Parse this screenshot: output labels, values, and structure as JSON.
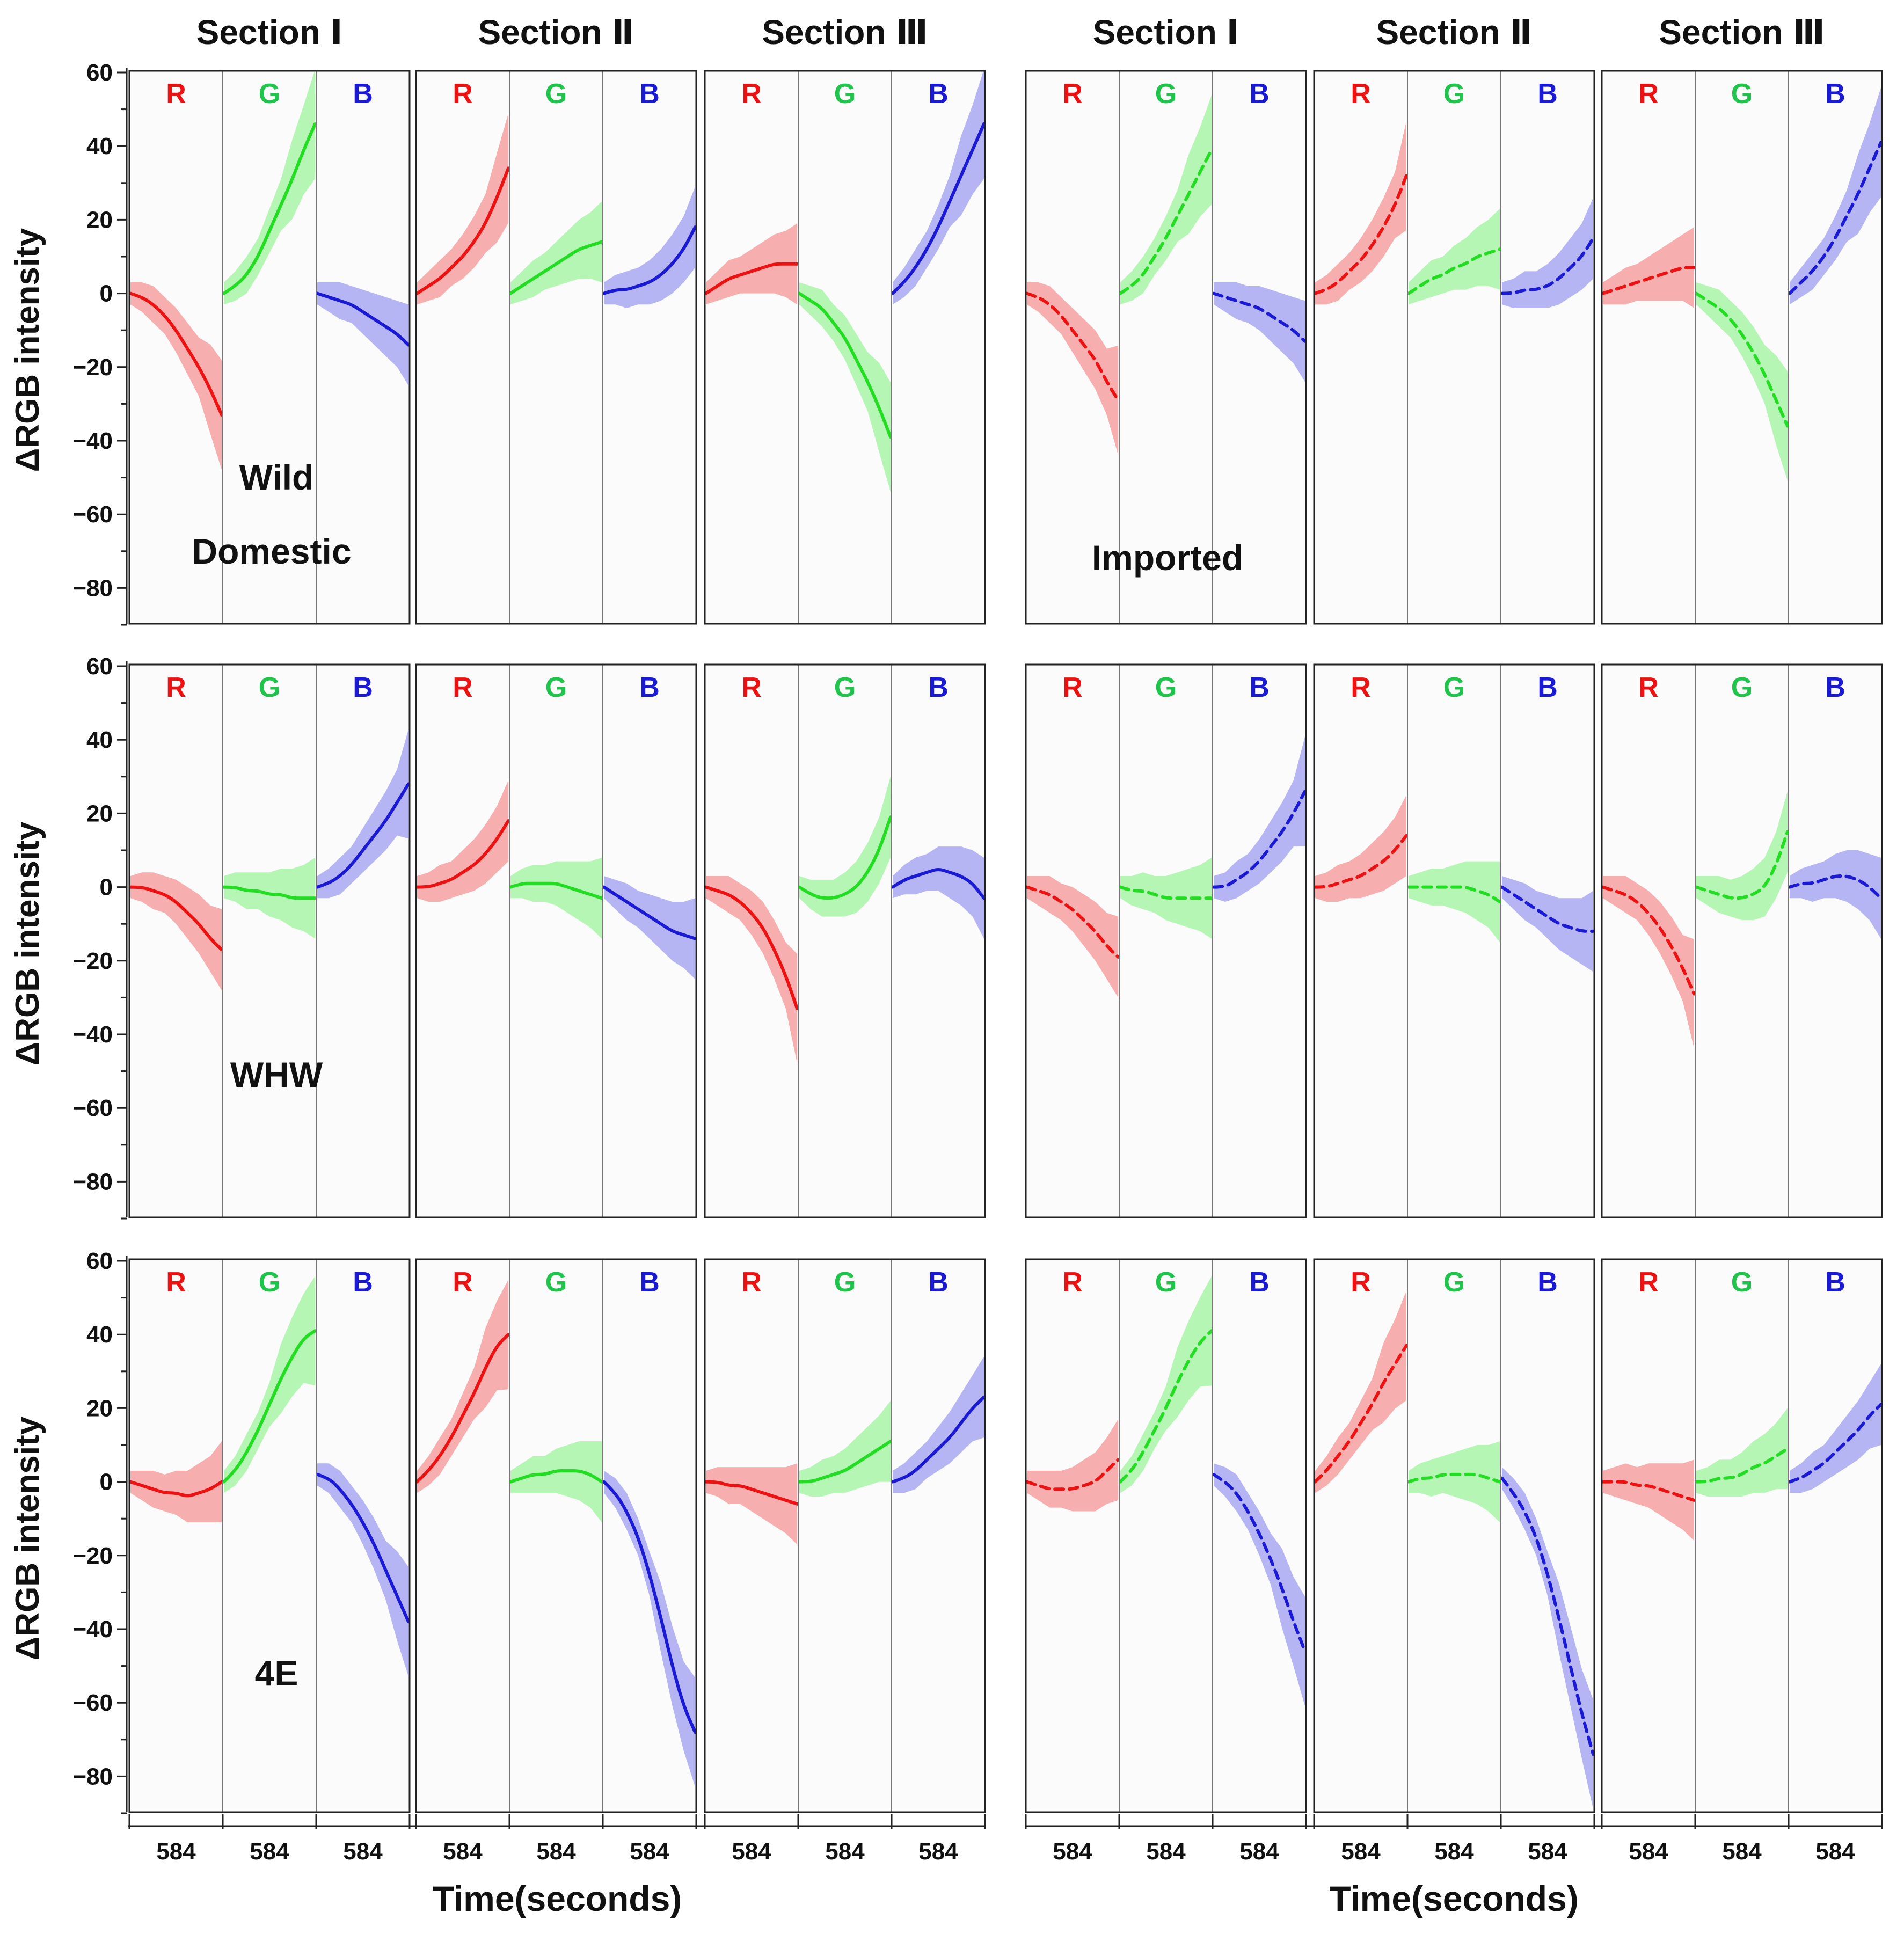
{
  "chart_data": {
    "type": "line",
    "ylabel": "ΔRGB intensity",
    "xlabel": "Time(seconds)",
    "ylim": [
      -90,
      60
    ],
    "yticks": [
      60,
      40,
      20,
      0,
      -20,
      -40,
      -60,
      -80
    ],
    "x_tick_label": "584",
    "channels": [
      "R",
      "G",
      "B"
    ],
    "channel_colors": {
      "R": "#ee1111",
      "G": "#22dd22",
      "B": "#1a1ad6"
    },
    "band_colors": {
      "R": "#f5a0a0",
      "G": "#a8f5a8",
      "B": "#a8a8f2"
    },
    "groups": [
      {
        "name": "Domestic",
        "line_style": "solid",
        "sections": [
          "Section Ⅰ",
          "Section Ⅱ",
          "Section Ⅲ"
        ]
      },
      {
        "name": "Imported",
        "line_style": "dashed",
        "sections": [
          "Section Ⅰ",
          "Section Ⅱ",
          "Section Ⅲ"
        ]
      }
    ],
    "rows": [
      {
        "label": "Wild",
        "domestic": [
          {
            "R": [
              0,
              -1,
              -3,
              -6,
              -10,
              -15,
              -20,
              -26,
              -33
            ],
            "G": [
              0,
              2,
              5,
              10,
              17,
              24,
              31,
              39,
              46
            ],
            "B": [
              0,
              -1,
              -2,
              -3,
              -5,
              -7,
              -9,
              -11,
              -14
            ]
          },
          {
            "R": [
              0,
              2,
              4,
              7,
              10,
              14,
              19,
              26,
              34
            ],
            "G": [
              0,
              2,
              4,
              6,
              8,
              10,
              12,
              13,
              14
            ],
            "B": [
              0,
              1,
              1,
              2,
              3,
              5,
              8,
              12,
              18
            ]
          },
          {
            "R": [
              0,
              2,
              4,
              5,
              6,
              7,
              8,
              8,
              8
            ],
            "G": [
              0,
              -2,
              -4,
              -8,
              -12,
              -18,
              -24,
              -31,
              -39
            ],
            "B": [
              0,
              3,
              7,
              12,
              18,
              25,
              32,
              39,
              46
            ]
          }
        ],
        "imported": [
          {
            "R": [
              0,
              -1,
              -3,
              -6,
              -10,
              -14,
              -18,
              -24,
              -29
            ],
            "G": [
              0,
              2,
              5,
              10,
              15,
              21,
              27,
              33,
              39
            ],
            "B": [
              0,
              -1,
              -2,
              -3,
              -4,
              -6,
              -8,
              -10,
              -13
            ]
          },
          {
            "R": [
              0,
              1,
              3,
              6,
              9,
              13,
              18,
              24,
              32
            ],
            "G": [
              0,
              2,
              4,
              5,
              7,
              8,
              10,
              11,
              12
            ],
            "B": [
              0,
              0,
              1,
              1,
              2,
              4,
              7,
              10,
              15
            ]
          },
          {
            "R": [
              0,
              1,
              2,
              3,
              4,
              5,
              6,
              7,
              7
            ],
            "G": [
              0,
              -2,
              -4,
              -7,
              -11,
              -16,
              -22,
              -29,
              -36
            ],
            "B": [
              0,
              3,
              6,
              10,
              15,
              21,
              27,
              34,
              41
            ]
          }
        ]
      },
      {
        "label": "WHW",
        "domestic": [
          {
            "R": [
              0,
              0,
              -1,
              -2,
              -4,
              -7,
              -10,
              -14,
              -17
            ],
            "G": [
              0,
              0,
              -1,
              -1,
              -2,
              -2,
              -3,
              -3,
              -3
            ],
            "B": [
              0,
              1,
              3,
              6,
              10,
              14,
              18,
              23,
              28
            ]
          },
          {
            "R": [
              0,
              0,
              1,
              2,
              4,
              6,
              9,
              13,
              18
            ],
            "G": [
              0,
              1,
              1,
              1,
              1,
              0,
              -1,
              -2,
              -3
            ],
            "B": [
              0,
              -2,
              -4,
              -6,
              -8,
              -10,
              -12,
              -13,
              -14
            ]
          },
          {
            "R": [
              0,
              -1,
              -2,
              -4,
              -7,
              -11,
              -17,
              -24,
              -33
            ],
            "G": [
              0,
              -2,
              -3,
              -3,
              -2,
              0,
              4,
              10,
              19
            ],
            "B": [
              0,
              2,
              3,
              4,
              5,
              4,
              3,
              1,
              -3
            ]
          }
        ],
        "imported": [
          {
            "R": [
              0,
              -1,
              -2,
              -4,
              -6,
              -9,
              -12,
              -16,
              -19
            ],
            "G": [
              0,
              -1,
              -1,
              -2,
              -3,
              -3,
              -3,
              -3,
              -3
            ],
            "B": [
              0,
              0,
              2,
              4,
              7,
              11,
              15,
              20,
              26
            ]
          },
          {
            "R": [
              0,
              0,
              1,
              2,
              3,
              5,
              7,
              10,
              14
            ],
            "G": [
              0,
              0,
              0,
              0,
              0,
              0,
              -1,
              -2,
              -4
            ],
            "B": [
              0,
              -2,
              -4,
              -6,
              -8,
              -10,
              -11,
              -12,
              -12
            ]
          },
          {
            "R": [
              0,
              -1,
              -2,
              -4,
              -7,
              -11,
              -16,
              -22,
              -29
            ],
            "G": [
              0,
              -1,
              -2,
              -3,
              -3,
              -2,
              0,
              6,
              15
            ],
            "B": [
              0,
              1,
              1,
              2,
              3,
              3,
              2,
              0,
              -3
            ]
          }
        ]
      },
      {
        "label": "4E",
        "domestic": [
          {
            "R": [
              0,
              -1,
              -2,
              -3,
              -3,
              -4,
              -3,
              -2,
              0
            ],
            "G": [
              0,
              3,
              8,
              14,
              21,
              28,
              34,
              39,
              41
            ],
            "B": [
              2,
              1,
              -2,
              -6,
              -11,
              -17,
              -24,
              -31,
              -38
            ]
          },
          {
            "R": [
              0,
              3,
              7,
              12,
              18,
              24,
              31,
              37,
              40
            ],
            "G": [
              0,
              1,
              2,
              2,
              3,
              3,
              3,
              2,
              0
            ],
            "B": [
              0,
              -3,
              -8,
              -15,
              -25,
              -37,
              -50,
              -61,
              -68
            ]
          },
          {
            "R": [
              0,
              0,
              -1,
              -1,
              -2,
              -3,
              -4,
              -5,
              -6
            ],
            "G": [
              0,
              0,
              1,
              2,
              3,
              5,
              7,
              9,
              11
            ],
            "B": [
              0,
              1,
              3,
              6,
              9,
              12,
              16,
              20,
              23
            ]
          }
        ],
        "imported": [
          {
            "R": [
              0,
              -1,
              -2,
              -2,
              -2,
              -1,
              0,
              3,
              6
            ],
            "G": [
              0,
              3,
              8,
              14,
              20,
              27,
              33,
              38,
              41
            ],
            "B": [
              2,
              0,
              -3,
              -8,
              -14,
              -21,
              -29,
              -38,
              -46
            ]
          },
          {
            "R": [
              0,
              3,
              7,
              11,
              16,
              21,
              27,
              32,
              37
            ],
            "G": [
              0,
              1,
              1,
              2,
              2,
              2,
              2,
              1,
              0
            ],
            "B": [
              1,
              -3,
              -8,
              -15,
              -25,
              -37,
              -50,
              -63,
              -74
            ]
          },
          {
            "R": [
              0,
              0,
              0,
              -1,
              -1,
              -2,
              -3,
              -4,
              -5
            ],
            "G": [
              0,
              0,
              1,
              1,
              2,
              4,
              5,
              7,
              9
            ],
            "B": [
              0,
              1,
              3,
              5,
              8,
              11,
              14,
              18,
              21
            ]
          }
        ]
      }
    ]
  }
}
